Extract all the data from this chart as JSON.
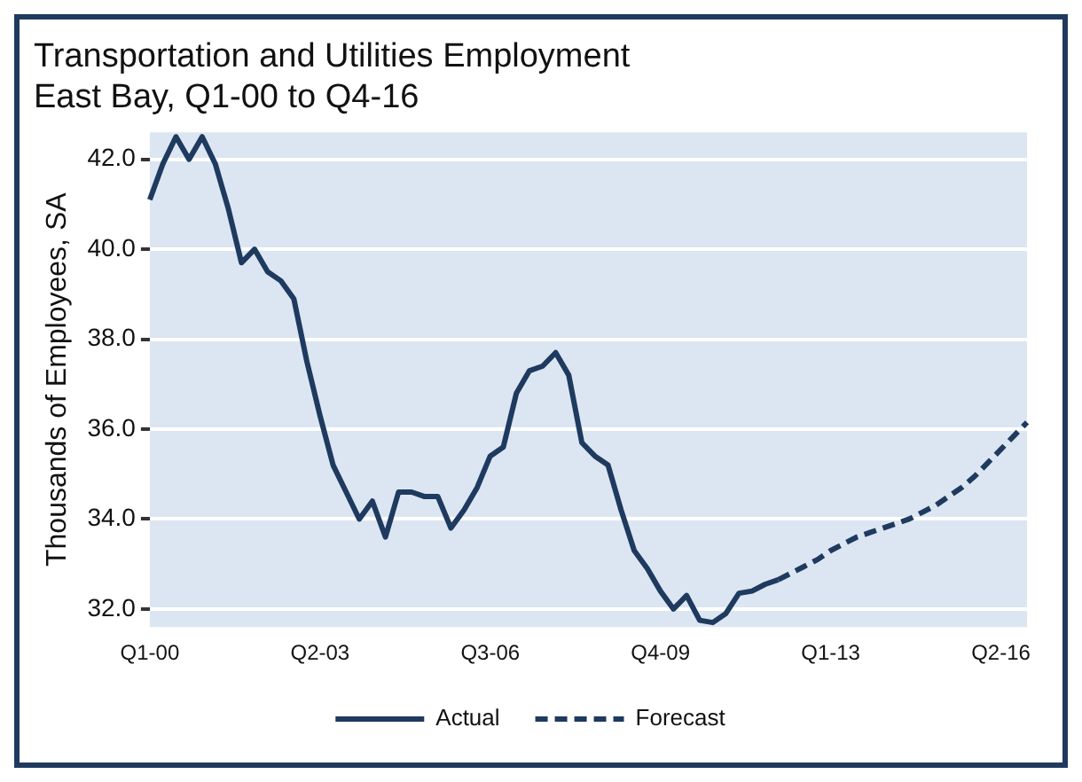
{
  "chart_data": {
    "type": "line",
    "title": "Transportation and Utilities Employment",
    "subtitle": "East Bay, Q1-00 to Q4-16",
    "ylabel": "Thousands of Employees, SA",
    "categories": [
      "Q1-00",
      null,
      null,
      null,
      null,
      null,
      null,
      null,
      null,
      null,
      null,
      null,
      null,
      "Q2-03",
      null,
      null,
      null,
      null,
      null,
      null,
      null,
      null,
      null,
      null,
      null,
      null,
      "Q3-06",
      null,
      null,
      null,
      null,
      null,
      null,
      null,
      null,
      null,
      null,
      null,
      null,
      "Q4-09",
      null,
      null,
      null,
      null,
      null,
      null,
      null,
      null,
      null,
      null,
      null,
      null,
      "Q1-13",
      null,
      null,
      null,
      null,
      null,
      null,
      null,
      null,
      null,
      null,
      null,
      null,
      "Q2-16",
      null,
      null
    ],
    "series": [
      {
        "name": "Actual",
        "color": "#1f3a5f",
        "line_style": "solid",
        "values": [
          41.1,
          41.9,
          42.5,
          42.0,
          42.5,
          41.9,
          40.9,
          39.7,
          40.0,
          39.5,
          39.3,
          38.9,
          37.5,
          36.3,
          35.2,
          34.6,
          34.0,
          34.4,
          33.6,
          34.6,
          34.6,
          34.5,
          34.5,
          33.8,
          34.2,
          34.7,
          35.4,
          35.6,
          36.8,
          37.3,
          37.4,
          37.7,
          37.2,
          35.7,
          35.4,
          35.2,
          34.2,
          33.3,
          32.9,
          32.4,
          32.0,
          32.3,
          31.75,
          31.7,
          31.9,
          32.35,
          32.4,
          32.55,
          32.65,
          null,
          null,
          null,
          null,
          null,
          null,
          null,
          null,
          null,
          null,
          null,
          null,
          null,
          null,
          null,
          null,
          null,
          null,
          null
        ]
      },
      {
        "name": "Forecast",
        "color": "#1f3a5f",
        "line_style": "dashed",
        "values": [
          null,
          null,
          null,
          null,
          null,
          null,
          null,
          null,
          null,
          null,
          null,
          null,
          null,
          null,
          null,
          null,
          null,
          null,
          null,
          null,
          null,
          null,
          null,
          null,
          null,
          null,
          null,
          null,
          null,
          null,
          null,
          null,
          null,
          null,
          null,
          null,
          null,
          null,
          null,
          null,
          null,
          null,
          null,
          null,
          null,
          null,
          null,
          null,
          32.65,
          32.8,
          32.95,
          33.1,
          33.3,
          33.45,
          33.6,
          33.7,
          33.8,
          33.9,
          34.0,
          34.15,
          34.3,
          34.5,
          34.7,
          34.95,
          35.25,
          35.55,
          35.85,
          36.15
        ]
      }
    ],
    "ylim": [
      31.6,
      42.6
    ],
    "yticks": [
      {
        "value": 32,
        "label": "32.0"
      },
      {
        "value": 34,
        "label": "34.0"
      },
      {
        "value": 36,
        "label": "36.0"
      },
      {
        "value": 38,
        "label": "38.0"
      },
      {
        "value": 40,
        "label": "40.0"
      },
      {
        "value": 42,
        "label": "42.0"
      }
    ],
    "grid": "y",
    "legend": "bottom",
    "marker": "none"
  }
}
